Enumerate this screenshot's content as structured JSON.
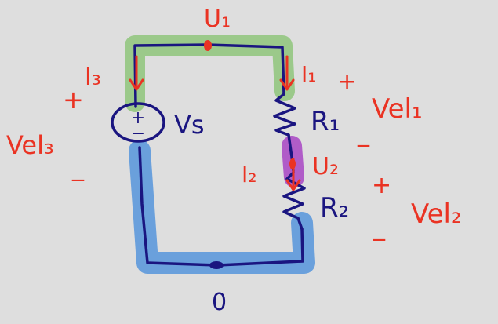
{
  "colors": {
    "background": "#dedede",
    "wire": "#1a1580",
    "annotation": "#ea3323",
    "highlight_node_1": "#9bc98a",
    "highlight_node_2": "#b05cc8",
    "highlight_ground": "#6aa0dc"
  },
  "nodes": {
    "node1_label": "U₁",
    "node2_label": "U₂",
    "ground_label": "0"
  },
  "source": {
    "label": "Vs",
    "plus_sign": "+",
    "minus_sign": "−",
    "voltage_label": "Vel₃",
    "ext_plus": "+",
    "ext_minus": "_"
  },
  "resistors": [
    {
      "label": "R₁",
      "voltage_label": "Vel₁",
      "plus": "+",
      "minus": "_"
    },
    {
      "label": "R₂",
      "voltage_label": "Vel₂",
      "plus": "+",
      "minus": "_"
    }
  ],
  "currents": {
    "i3": "I₃",
    "i1": "I₁",
    "i2": "I₂"
  }
}
